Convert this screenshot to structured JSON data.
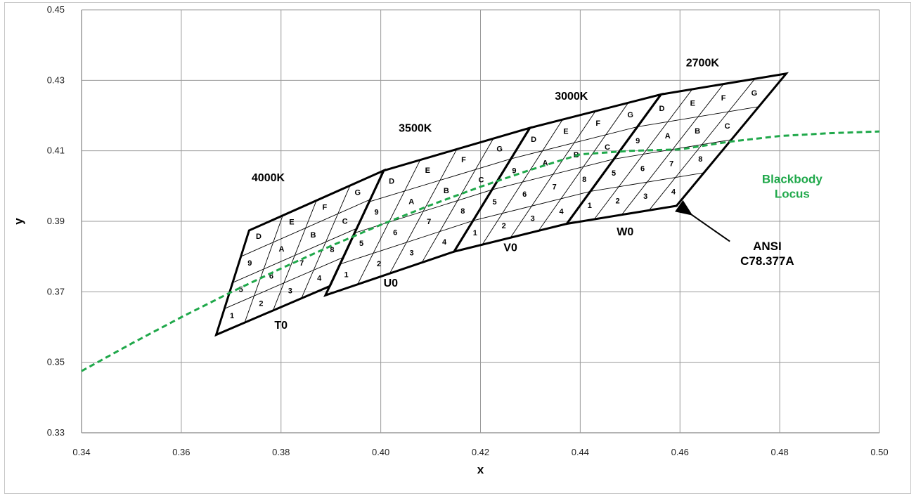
{
  "chart_data": {
    "type": "line",
    "title": "",
    "xlabel": "x",
    "ylabel": "y",
    "xlim": [
      0.34,
      0.5
    ],
    "ylim": [
      0.33,
      0.45
    ],
    "x_ticks": [
      "0.34",
      "0.36",
      "0.38",
      "0.40",
      "0.42",
      "0.44",
      "0.46",
      "0.48",
      "0.50"
    ],
    "y_ticks": [
      "0.33",
      "0.35",
      "0.37",
      "0.39",
      "0.41",
      "0.43",
      "0.45"
    ],
    "grid": true,
    "colors": {
      "locus": "#1fa84a",
      "grid": "#9a9a9a",
      "outline": "#000000"
    },
    "blackbody_locus": {
      "label": [
        "Blackbody",
        "Locus"
      ],
      "points": [
        [
          0.34,
          0.3475
        ],
        [
          0.35,
          0.3553
        ],
        [
          0.36,
          0.3628
        ],
        [
          0.37,
          0.3699
        ],
        [
          0.38,
          0.3766
        ],
        [
          0.39,
          0.383
        ],
        [
          0.4,
          0.389
        ],
        [
          0.41,
          0.3946
        ],
        [
          0.42,
          0.3998
        ],
        [
          0.43,
          0.4046
        ],
        [
          0.44,
          0.409
        ],
        [
          0.45,
          0.41
        ],
        [
          0.46,
          0.4104
        ],
        [
          0.47,
          0.4126
        ],
        [
          0.48,
          0.4142
        ],
        [
          0.49,
          0.415
        ],
        [
          0.5,
          0.4155
        ]
      ]
    },
    "quadrangles": [
      {
        "cct": "4000K",
        "zone": "T0",
        "corners": [
          [
            0.3736,
            0.3874
          ],
          [
            0.4006,
            0.4044
          ],
          [
            0.3898,
            0.3716
          ],
          [
            0.367,
            0.3578
          ]
        ]
      },
      {
        "cct": "3500K",
        "zone": "U0",
        "corners": [
          [
            0.4006,
            0.4044
          ],
          [
            0.4299,
            0.4165
          ],
          [
            0.4147,
            0.3814
          ],
          [
            0.3889,
            0.369
          ]
        ]
      },
      {
        "cct": "3000K",
        "zone": "V0",
        "corners": [
          [
            0.4299,
            0.4165
          ],
          [
            0.4562,
            0.426
          ],
          [
            0.4373,
            0.3893
          ],
          [
            0.4147,
            0.3814
          ]
        ]
      },
      {
        "cct": "2700K",
        "zone": "W0",
        "corners": [
          [
            0.4562,
            0.426
          ],
          [
            0.4813,
            0.4319
          ],
          [
            0.4593,
            0.3944
          ],
          [
            0.4373,
            0.3893
          ]
        ]
      }
    ],
    "cell_codes": [
      "1",
      "2",
      "3",
      "4",
      "5",
      "6",
      "7",
      "8",
      "9",
      "A",
      "B",
      "C",
      "D",
      "E",
      "F",
      "G"
    ],
    "ansi_label": [
      "ANSI",
      "C78.377A"
    ]
  }
}
